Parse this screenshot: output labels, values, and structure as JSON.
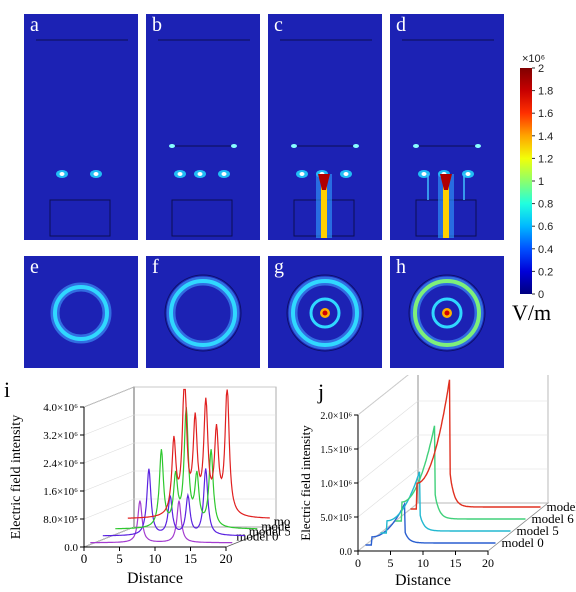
{
  "panels_top": [
    {
      "label": "a",
      "model": 0
    },
    {
      "label": "b",
      "model": 5
    },
    {
      "label": "c",
      "model": 6
    },
    {
      "label": "d",
      "model": 7
    }
  ],
  "panels_mid": [
    {
      "label": "e",
      "model": 0
    },
    {
      "label": "f",
      "model": 5
    },
    {
      "label": "g",
      "model": 6
    },
    {
      "label": "h",
      "model": 7
    }
  ],
  "colorbar": {
    "exponent_label": "×10⁶",
    "ticks": [
      "2",
      "1.8",
      "1.6",
      "1.4",
      "1.2",
      "1",
      "0.8",
      "0.6",
      "0.4",
      "0.2",
      "0"
    ],
    "unit": "V/m",
    "stops": [
      "#00007f",
      "#0000d8",
      "#0050ff",
      "#00b8ff",
      "#20ffdf",
      "#8cff6c",
      "#f2ff08",
      "#ffa400",
      "#ff3000",
      "#c80000",
      "#800000"
    ]
  },
  "chart_data": [
    {
      "type": "line",
      "panel": "i",
      "ylabel": "Electric field intensity",
      "xlabel": "Distance",
      "x_ticks": [
        "0",
        "5",
        "10",
        "15",
        "20"
      ],
      "y_ticks": [
        "0.0",
        "8.0×10⁵",
        "1.6×10⁶",
        "2.4×10⁶",
        "3.2×10⁶",
        "4.0×10⁶"
      ],
      "xlim": [
        0,
        20
      ],
      "ylim": [
        0,
        4000000
      ],
      "series": [
        {
          "name": "model 0",
          "color": "#a33ccf",
          "peaks": [
            [
              7,
              1200000
            ],
            [
              12.5,
              1200000
            ]
          ],
          "base": 50000
        },
        {
          "name": "model 5",
          "color": "#5a22e0",
          "peaks": [
            [
              6.5,
              1900000
            ],
            [
              9.5,
              1100000
            ],
            [
              12,
              1100000
            ],
            [
              14.5,
              1900000
            ]
          ],
          "base": 100000
        },
        {
          "name": "model 6",
          "color": "#2ec82e",
          "peaks": [
            [
              6.5,
              2200000
            ],
            [
              8.5,
              1400000
            ],
            [
              10,
              3300000
            ],
            [
              11.5,
              1400000
            ],
            [
              13.5,
              2200000
            ]
          ],
          "base": 150000
        },
        {
          "name": "model 7",
          "color": "#e02020",
          "peaks": [
            [
              6.5,
              2100000
            ],
            [
              8,
              3900000
            ],
            [
              9.5,
              2600000
            ],
            [
              11,
              3100000
            ],
            [
              12.5,
              2300000
            ],
            [
              14,
              3600000
            ]
          ],
          "base": 300000
        }
      ]
    },
    {
      "type": "line",
      "panel": "j",
      "ylabel": "Electric field intensity",
      "xlabel": "Distance",
      "x_ticks": [
        "0",
        "5",
        "10",
        "15",
        "20"
      ],
      "y_ticks": [
        "0.0",
        "5.0×10⁵",
        "1.0×10⁶",
        "1.5×10⁶",
        "2.0×10⁶"
      ],
      "xlim": [
        0,
        20
      ],
      "ylim": [
        0,
        2000000
      ],
      "series": [
        {
          "name": "model 0",
          "color": "#2a5fd0",
          "peak": 600000
        },
        {
          "name": "model 5",
          "color": "#22b8d0",
          "peak": 900000
        },
        {
          "name": "model 6",
          "color": "#40d07a",
          "peak": 1400000
        },
        {
          "name": "model 7",
          "color": "#e03020",
          "peak": 1900000
        }
      ]
    }
  ]
}
